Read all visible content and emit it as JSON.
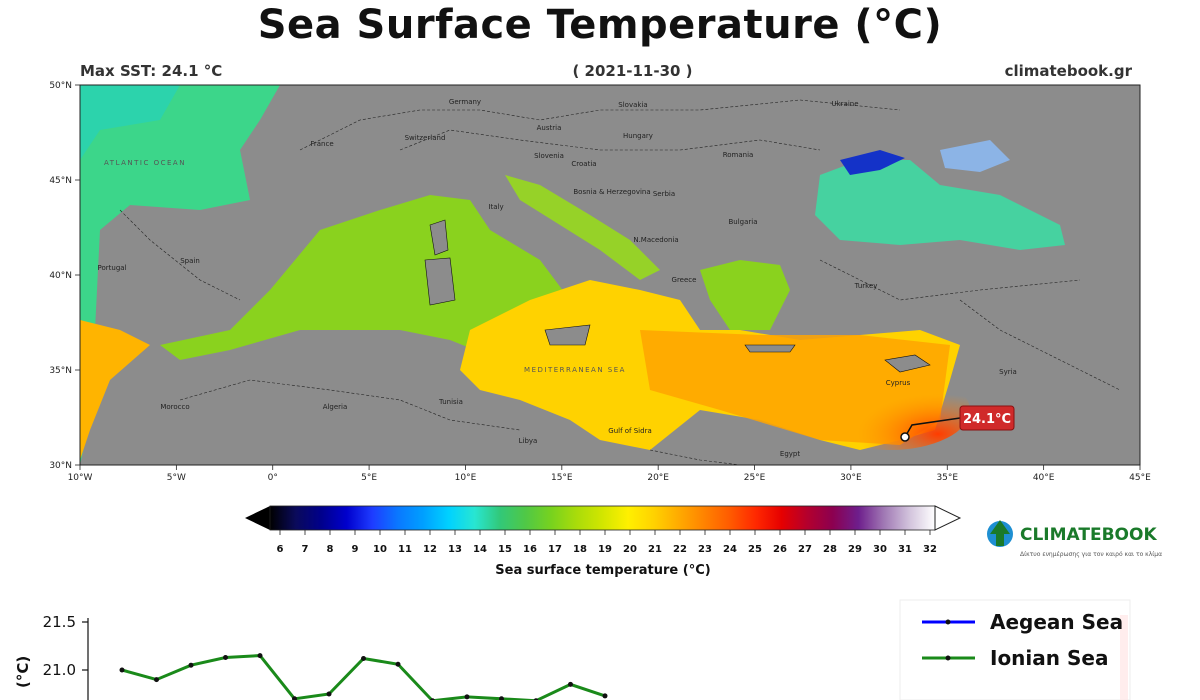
{
  "header": {
    "title": "Sea Surface Temperature (°C)",
    "max_sst": "Max SST: 24.1 °C",
    "date": "( 2021-11-30 )",
    "source": "climatebook.gr"
  },
  "map": {
    "lon_ticks": [
      "10°W",
      "5°W",
      "0°",
      "5°E",
      "10°E",
      "15°E",
      "20°E",
      "25°E",
      "30°E",
      "35°E",
      "40°E",
      "45°E"
    ],
    "lat_ticks": [
      "50°N",
      "45°N",
      "40°N",
      "35°N",
      "30°N"
    ],
    "max_marker_label": "24.1°C",
    "countries": [
      "Germany",
      "Slovakia",
      "Ukraine",
      "Austria",
      "Hungary",
      "France",
      "Switzerland",
      "Slovenia",
      "Croatia",
      "Romania",
      "Bosnia & Herzegovina",
      "Serbia",
      "Italy",
      "Bulgaria",
      "N.Macedonia",
      "Spain",
      "Portugal",
      "Greece",
      "Turkey",
      "Cyprus",
      "Syria",
      "Morocco",
      "Algeria",
      "Tunisia",
      "Libya",
      "Egypt",
      "Gulf of Sidra"
    ],
    "sea_labels": [
      "ATLANTIC OCEAN",
      "MEDITERRANEAN SEA"
    ]
  },
  "colorbar": {
    "ticks": [
      "6",
      "7",
      "8",
      "9",
      "10",
      "11",
      "12",
      "13",
      "14",
      "15",
      "16",
      "17",
      "18",
      "19",
      "20",
      "21",
      "22",
      "23",
      "24",
      "25",
      "26",
      "27",
      "28",
      "29",
      "30",
      "31",
      "32"
    ],
    "label": "Sea surface temperature (°C)",
    "colors": [
      "#000000",
      "#0a0a5a",
      "#00008b",
      "#0000cd",
      "#1e3cff",
      "#0a78ff",
      "#00a0ff",
      "#00d2ff",
      "#28e6d2",
      "#32c878",
      "#50c846",
      "#78d21e",
      "#aadc0a",
      "#d2e600",
      "#fff000",
      "#ffd200",
      "#ffaa00",
      "#ff8200",
      "#ff5a00",
      "#ff2800",
      "#e60000",
      "#b4002d",
      "#8c0050",
      "#6e1e8c",
      "#a078b4",
      "#d2c3dc",
      "#ffffff"
    ]
  },
  "logo": {
    "name": "CLIMATEBOOK",
    "tagline": "Δίκτυο ενημέρωσης για τον καιρό και το κλίμα"
  },
  "chart_data": {
    "type": "line",
    "ylabel": "(°C)",
    "y_ticks": [
      21.5,
      21.0
    ],
    "series": [
      {
        "name": "Aegean Sea",
        "color": "#0000ff",
        "values": []
      },
      {
        "name": "Ionian Sea",
        "color": "#1a8a1a",
        "values": [
          21.0,
          20.9,
          21.05,
          21.13,
          21.15,
          20.7,
          20.75,
          21.12,
          21.06,
          20.68,
          20.72,
          20.7,
          20.68,
          20.85,
          20.73
        ]
      }
    ]
  }
}
